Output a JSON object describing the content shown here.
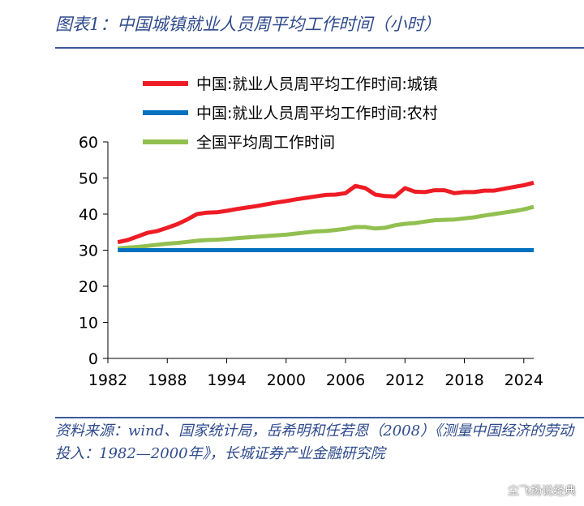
{
  "header": {
    "title": "图表1：中国城镇就业人员周平均工作时间（小时）"
  },
  "footer": {
    "source": "资料来源：wind、国家统计局，岳希明和任若恩（2008）《测量中国经济的劳动投入：1982—2000年》，长城证券产业金融研究院",
    "watermark": "尘飞扬说经典"
  },
  "chart_data": {
    "type": "line",
    "xlim": [
      1982,
      2025
    ],
    "ylim": [
      0,
      60
    ],
    "xticks": [
      1982,
      1988,
      1994,
      2000,
      2006,
      2012,
      2018,
      2024
    ],
    "yticks": [
      0,
      10,
      20,
      30,
      40,
      50,
      60
    ],
    "grid": false,
    "legend_position": "top-left",
    "series": [
      {
        "name": "中国:就业人员周平均工作时间:城镇",
        "color": "#ee1c25",
        "x": [
          1983,
          1984,
          1985,
          1986,
          1987,
          1988,
          1989,
          1990,
          1991,
          1992,
          1993,
          1994,
          1995,
          1996,
          1997,
          1998,
          1999,
          2000,
          2001,
          2002,
          2003,
          2004,
          2005,
          2006,
          2007,
          2008,
          2009,
          2010,
          2011,
          2012,
          2013,
          2014,
          2015,
          2016,
          2017,
          2018,
          2019,
          2020,
          2021,
          2022,
          2023,
          2024,
          2025
        ],
        "y": [
          32.2,
          32.8,
          33.8,
          34.8,
          35.3,
          36.2,
          37.2,
          38.5,
          40.0,
          40.4,
          40.5,
          40.9,
          41.4,
          41.8,
          42.2,
          42.7,
          43.2,
          43.6,
          44.1,
          44.5,
          44.9,
          45.3,
          45.4,
          45.8,
          47.8,
          47.2,
          45.4,
          45.0,
          44.9,
          47.2,
          46.2,
          46.1,
          46.6,
          46.6,
          45.8,
          46.1,
          46.1,
          46.5,
          46.5,
          47.0,
          47.5,
          48.0,
          48.7
        ]
      },
      {
        "name": "中国:就业人员周平均工作时间:农村",
        "color": "#0070c0",
        "x": [
          1983,
          2025
        ],
        "y": [
          30.0,
          30.0
        ]
      },
      {
        "name": "全国平均周工作时间",
        "color": "#92c050",
        "x": [
          1983,
          1984,
          1985,
          1986,
          1987,
          1988,
          1989,
          1990,
          1991,
          1992,
          1993,
          1994,
          1995,
          1996,
          1997,
          1998,
          1999,
          2000,
          2001,
          2002,
          2003,
          2004,
          2005,
          2006,
          2007,
          2008,
          2009,
          2010,
          2011,
          2012,
          2013,
          2014,
          2015,
          2016,
          2017,
          2018,
          2019,
          2020,
          2021,
          2022,
          2023,
          2024,
          2025
        ],
        "y": [
          30.5,
          30.7,
          30.9,
          31.2,
          31.5,
          31.8,
          32.0,
          32.3,
          32.6,
          32.8,
          32.9,
          33.1,
          33.3,
          33.5,
          33.7,
          33.9,
          34.1,
          34.3,
          34.6,
          34.9,
          35.2,
          35.3,
          35.6,
          35.9,
          36.4,
          36.4,
          36.0,
          36.2,
          36.9,
          37.3,
          37.5,
          37.9,
          38.3,
          38.4,
          38.5,
          38.8,
          39.1,
          39.6,
          40.0,
          40.4,
          40.8,
          41.3,
          42.0
        ]
      }
    ]
  }
}
